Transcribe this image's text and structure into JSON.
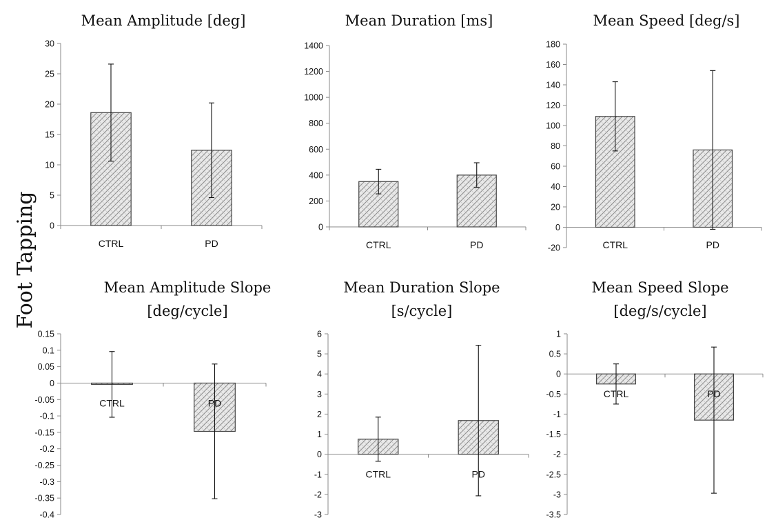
{
  "row_label": "Foot Tapping",
  "chart_data": [
    {
      "type": "bar",
      "title": [
        "Mean Amplitude [deg]"
      ],
      "categories": [
        "CTRL",
        "PD"
      ],
      "values": [
        18.6,
        12.4
      ],
      "error": [
        8.0,
        7.8
      ],
      "ylim": [
        0,
        30
      ],
      "yticks": [
        0,
        5,
        10,
        15,
        20,
        25,
        30
      ],
      "ytick_labels": [
        "0",
        "5",
        "10",
        "15",
        "20",
        "25",
        "30"
      ]
    },
    {
      "type": "bar",
      "title": [
        "Mean Duration [ms]"
      ],
      "categories": [
        "CTRL",
        "PD"
      ],
      "values": [
        350,
        400
      ],
      "error": [
        95,
        95
      ],
      "ylim": [
        0,
        1400
      ],
      "yticks": [
        0,
        200,
        400,
        600,
        800,
        1000,
        1200,
        1400
      ],
      "ytick_labels": [
        "0",
        "200",
        "400",
        "600",
        "800",
        "1000",
        "1200",
        "1400"
      ]
    },
    {
      "type": "bar",
      "title": [
        "Mean Speed [deg/s]"
      ],
      "categories": [
        "CTRL",
        "PD"
      ],
      "values": [
        109,
        76
      ],
      "error": [
        34,
        78
      ],
      "ylim": [
        -20,
        180
      ],
      "yticks": [
        -20,
        0,
        20,
        40,
        60,
        80,
        100,
        120,
        140,
        160,
        180
      ],
      "ytick_labels": [
        "-20",
        "0",
        "20",
        "40",
        "60",
        "80",
        "100",
        "120",
        "140",
        "160",
        "180"
      ]
    },
    {
      "type": "bar",
      "title": [
        "Mean Amplitude Slope",
        "[deg/cycle]"
      ],
      "categories": [
        "CTRL",
        "PD"
      ],
      "values": [
        -0.004,
        -0.147
      ],
      "error": [
        0.1,
        0.205
      ],
      "ylim": [
        -0.4,
        0.15
      ],
      "yticks": [
        -0.4,
        -0.35,
        -0.3,
        -0.25,
        -0.2,
        -0.15,
        -0.1,
        -0.05,
        0,
        0.05,
        0.1,
        0.15
      ],
      "ytick_labels": [
        "-0.4",
        "-0.35",
        "-0.3",
        "-0.25",
        "-0.2",
        "-0.15",
        "-0.1",
        "-0.05",
        "0",
        "0.05",
        "0.1",
        "0.15"
      ]
    },
    {
      "type": "bar",
      "title": [
        "Mean Duration Slope",
        "[s/cycle]"
      ],
      "categories": [
        "CTRL",
        "PD"
      ],
      "values": [
        0.75,
        1.68
      ],
      "error": [
        1.1,
        3.75
      ],
      "ylim": [
        -3,
        6
      ],
      "yticks": [
        -3,
        -2,
        -1,
        0,
        1,
        2,
        3,
        4,
        5,
        6
      ],
      "ytick_labels": [
        "-3",
        "-2",
        "-1",
        "0",
        "1",
        "2",
        "3",
        "4",
        "5",
        "6"
      ]
    },
    {
      "type": "bar",
      "title": [
        "Mean Speed Slope",
        "[deg/s/cycle]"
      ],
      "categories": [
        "CTRL",
        "PD"
      ],
      "values": [
        -0.25,
        -1.15
      ],
      "error": [
        0.5,
        1.82
      ],
      "ylim": [
        -3.5,
        1
      ],
      "yticks": [
        -3.5,
        -3,
        -2.5,
        -2,
        -1.5,
        -1,
        -0.5,
        0,
        0.5,
        1
      ],
      "ytick_labels": [
        "-3.5",
        "-3",
        "-2.5",
        "-2",
        "-1.5",
        "-1",
        "-0.5",
        "0",
        "0.5",
        "1"
      ]
    }
  ]
}
